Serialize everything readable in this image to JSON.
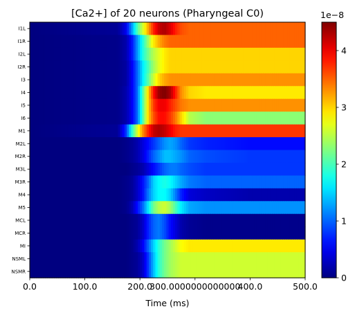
{
  "chart_data": {
    "type": "heatmap",
    "title": "[Ca2+] of 20 neurons (Pharyngeal C0)",
    "xlabel": "Time (ms)",
    "ylabel": "",
    "xlim": [
      0,
      500
    ],
    "x_ticks": [
      "0.0",
      "100.0",
      "200.0",
      "300.0000000000000",
      "400.0",
      "500.0"
    ],
    "x_tick_values": [
      0,
      100,
      200,
      300,
      400,
      500
    ],
    "rows": [
      "I1L",
      "I1R",
      "I2L",
      "I2R",
      "I3",
      "I4",
      "I5",
      "I6",
      "M1",
      "M2L",
      "M2R",
      "M3L",
      "M3R",
      "M4",
      "M5",
      "MCL",
      "MCR",
      "MI",
      "NSML",
      "NSMR"
    ],
    "time_points": [
      0,
      160,
      175,
      185,
      195,
      205,
      215,
      225,
      235,
      245,
      255,
      265,
      275,
      290,
      320,
      360,
      400,
      500
    ],
    "values_e8": [
      [
        0.0,
        0.1,
        0.5,
        1.2,
        2.0,
        2.6,
        3.2,
        3.8,
        4.2,
        4.3,
        4.1,
        3.8,
        3.6,
        3.5,
        3.5,
        3.5,
        3.5,
        3.5
      ],
      [
        0.0,
        0.05,
        0.2,
        0.6,
        1.2,
        1.8,
        2.4,
        2.9,
        3.2,
        3.4,
        3.5,
        3.5,
        3.5,
        3.5,
        3.5,
        3.5,
        3.5,
        3.5
      ],
      [
        0.0,
        0.05,
        0.2,
        0.6,
        1.2,
        1.8,
        2.2,
        2.5,
        2.7,
        2.9,
        3.0,
        3.0,
        3.0,
        3.0,
        3.0,
        3.0,
        3.0,
        3.0
      ],
      [
        0.0,
        0.05,
        0.15,
        0.5,
        1.0,
        1.6,
        2.0,
        2.4,
        2.7,
        2.9,
        3.0,
        3.0,
        3.0,
        3.0,
        3.0,
        3.0,
        3.0,
        3.0
      ],
      [
        0.0,
        0.05,
        0.15,
        0.5,
        1.0,
        1.6,
        2.1,
        2.6,
        3.0,
        3.2,
        3.3,
        3.3,
        3.3,
        3.3,
        3.3,
        3.3,
        3.3,
        3.3
      ],
      [
        0.0,
        0.05,
        0.2,
        0.5,
        1.0,
        2.0,
        3.0,
        3.9,
        4.4,
        4.5,
        4.3,
        3.8,
        3.3,
        3.0,
        2.9,
        2.9,
        2.9,
        2.9
      ],
      [
        0.0,
        0.05,
        0.2,
        0.5,
        1.0,
        2.0,
        3.0,
        3.7,
        4.0,
        4.0,
        3.8,
        3.6,
        3.4,
        3.3,
        3.3,
        3.3,
        3.3,
        3.3
      ],
      [
        0.0,
        0.05,
        0.2,
        0.5,
        1.0,
        2.0,
        3.0,
        3.6,
        3.9,
        3.9,
        3.7,
        3.4,
        3.0,
        2.5,
        2.3,
        2.3,
        2.3,
        2.3
      ],
      [
        0.0,
        0.1,
        0.8,
        1.8,
        2.6,
        3.3,
        3.8,
        4.2,
        4.3,
        4.2,
        4.0,
        3.8,
        3.7,
        3.7,
        3.7,
        3.7,
        3.7,
        3.7
      ],
      [
        0.0,
        0.0,
        0.05,
        0.1,
        0.2,
        0.4,
        0.6,
        0.8,
        1.0,
        1.2,
        1.3,
        1.2,
        1.0,
        0.8,
        0.7,
        0.65,
        0.6,
        0.6
      ],
      [
        0.0,
        0.0,
        0.05,
        0.1,
        0.2,
        0.4,
        0.7,
        1.0,
        1.2,
        1.4,
        1.4,
        1.3,
        1.2,
        1.0,
        0.9,
        0.85,
        0.8,
        0.8
      ],
      [
        0.0,
        0.0,
        0.0,
        0.05,
        0.1,
        0.2,
        0.4,
        0.6,
        0.8,
        1.0,
        1.1,
        1.1,
        1.0,
        0.9,
        0.8,
        0.8,
        0.8,
        0.8
      ],
      [
        0.0,
        0.0,
        0.05,
        0.1,
        0.3,
        0.6,
        1.0,
        1.5,
        1.7,
        1.8,
        1.7,
        1.5,
        1.3,
        1.1,
        1.0,
        1.0,
        1.0,
        1.0
      ],
      [
        0.0,
        0.0,
        0.05,
        0.1,
        0.3,
        0.6,
        1.1,
        1.5,
        1.7,
        1.7,
        1.5,
        1.1,
        0.7,
        0.4,
        0.3,
        0.25,
        0.2,
        0.2
      ],
      [
        0.0,
        0.0,
        0.05,
        0.2,
        0.6,
        1.0,
        1.6,
        2.2,
        2.5,
        2.6,
        2.4,
        2.0,
        1.6,
        1.3,
        1.2,
        1.2,
        1.2,
        1.2
      ],
      [
        0.0,
        0.0,
        0.0,
        0.05,
        0.1,
        0.3,
        0.7,
        1.0,
        1.1,
        0.9,
        0.6,
        0.4,
        0.2,
        0.1,
        0.05,
        0.05,
        0.05,
        0.05
      ],
      [
        0.0,
        0.0,
        0.0,
        0.05,
        0.1,
        0.3,
        0.7,
        1.0,
        1.1,
        0.9,
        0.6,
        0.4,
        0.2,
        0.1,
        0.05,
        0.05,
        0.05,
        0.05
      ],
      [
        0.0,
        0.0,
        0.0,
        0.05,
        0.2,
        0.5,
        1.0,
        1.5,
        1.9,
        2.2,
        2.4,
        2.6,
        2.8,
        2.9,
        2.9,
        2.9,
        2.9,
        2.9
      ],
      [
        0.0,
        0.0,
        0.0,
        0.05,
        0.1,
        0.3,
        0.8,
        1.4,
        1.9,
        2.2,
        2.4,
        2.5,
        2.6,
        2.6,
        2.6,
        2.6,
        2.6,
        2.6
      ],
      [
        0.0,
        0.0,
        0.0,
        0.05,
        0.1,
        0.3,
        0.8,
        1.4,
        1.9,
        2.2,
        2.4,
        2.5,
        2.6,
        2.6,
        2.6,
        2.6,
        2.6,
        2.6
      ]
    ],
    "colorbar": {
      "colormap": "jet",
      "min": 0,
      "max": 4.5,
      "ticks": [
        "0",
        "1",
        "2",
        "3",
        "4"
      ],
      "tick_values": [
        0,
        1,
        2,
        3,
        4
      ],
      "scale_label": "1e−8"
    }
  }
}
